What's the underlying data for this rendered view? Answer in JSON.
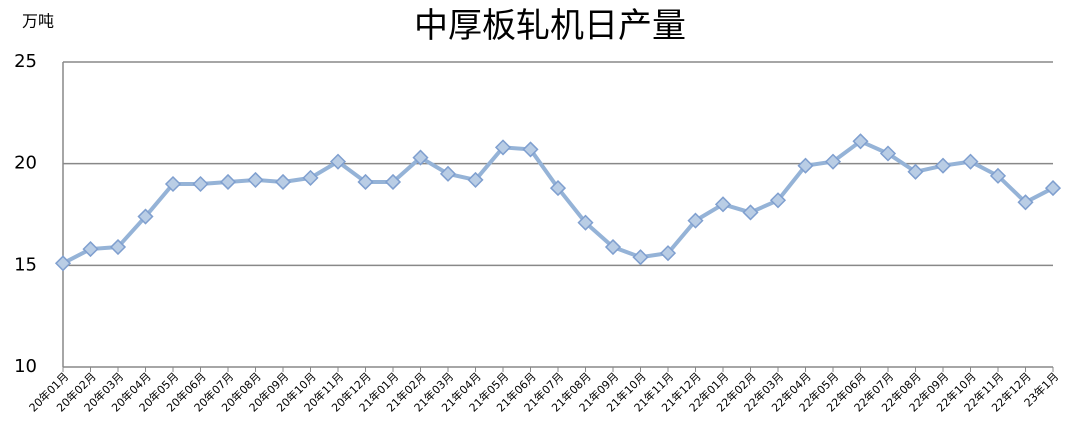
{
  "chart_data": {
    "type": "line",
    "title": "中厚板轧机日产量",
    "y_label": "万吨",
    "categories": [
      "20年01月",
      "20年02月",
      "20年03月",
      "20年04月",
      "20年05月",
      "20年06月",
      "20年07月",
      "20年08月",
      "20年09月",
      "20年10月",
      "20年11月",
      "20年12月",
      "21年01月",
      "21年02月",
      "21年03月",
      "21年04月",
      "21年05月",
      "21年06月",
      "21年07月",
      "21年08月",
      "21年09月",
      "21年10月",
      "21年11月",
      "21年12月",
      "22年01月",
      "22年02月",
      "22年03月",
      "22年04月",
      "22年05月",
      "22年06月",
      "22年07月",
      "22年08月",
      "22年09月",
      "22年10月",
      "22年11月",
      "22年12月",
      "23年1月"
    ],
    "series": [
      {
        "name": "中厚板轧机日产量",
        "color": "#95b3d7",
        "values": [
          15.1,
          15.8,
          15.9,
          17.4,
          19.0,
          19.0,
          19.1,
          19.2,
          19.1,
          19.3,
          20.1,
          19.1,
          19.1,
          20.3,
          19.5,
          19.2,
          20.8,
          20.7,
          18.8,
          17.1,
          15.9,
          15.4,
          15.6,
          17.2,
          18.0,
          17.6,
          18.2,
          19.9,
          20.1,
          21.1,
          20.5,
          19.6,
          19.9,
          20.1,
          19.4,
          18.1,
          18.8
        ]
      }
    ],
    "ylim": [
      10,
      25
    ],
    "yticks": [
      10,
      15,
      20,
      25
    ],
    "grid": true
  }
}
